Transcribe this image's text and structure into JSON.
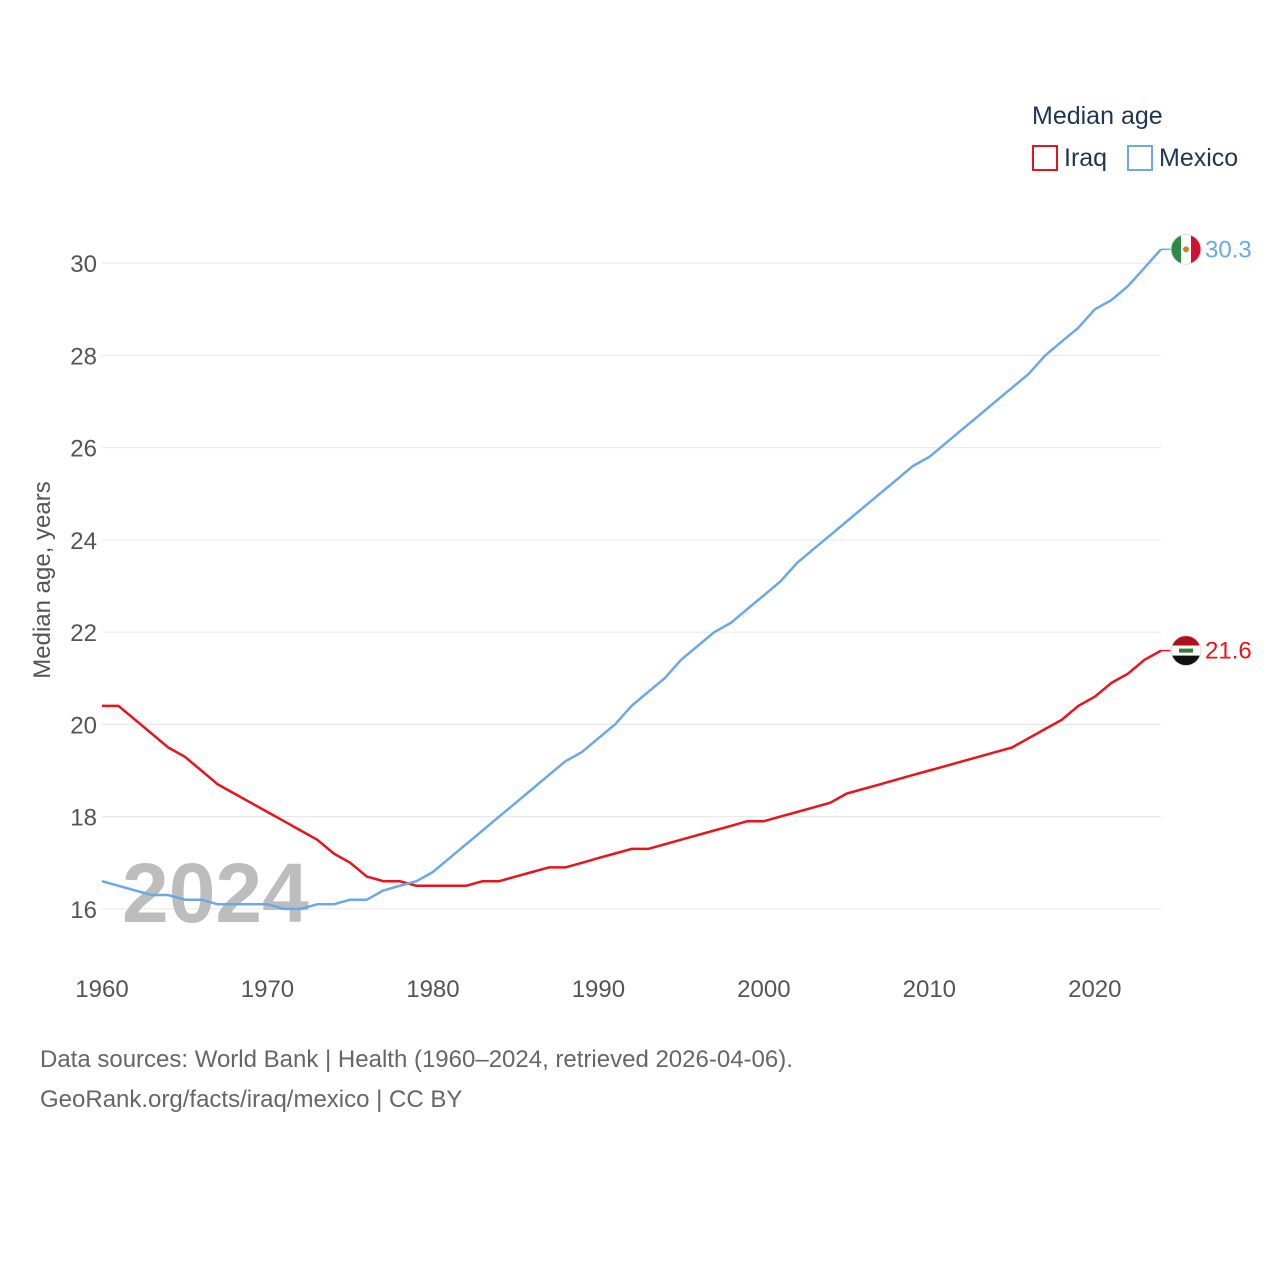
{
  "chart_data": {
    "type": "line",
    "legend_title": "Median age",
    "ylabel": "Median age, years",
    "xlabel": "",
    "xlim": [
      1960,
      2024
    ],
    "ylim": [
      15,
      31.5
    ],
    "x_ticks": [
      1960,
      1970,
      1980,
      1990,
      2000,
      2010,
      2020
    ],
    "y_ticks": [
      16,
      18,
      20,
      22,
      24,
      26,
      28,
      30
    ],
    "watermark_year": "2024",
    "legend_position": "top-right",
    "x": [
      1960,
      1961,
      1962,
      1963,
      1964,
      1965,
      1966,
      1967,
      1968,
      1969,
      1970,
      1971,
      1972,
      1973,
      1974,
      1975,
      1976,
      1977,
      1978,
      1979,
      1980,
      1981,
      1982,
      1983,
      1984,
      1985,
      1986,
      1987,
      1988,
      1989,
      1990,
      1991,
      1992,
      1993,
      1994,
      1995,
      1996,
      1997,
      1998,
      1999,
      2000,
      2001,
      2002,
      2003,
      2004,
      2005,
      2006,
      2007,
      2008,
      2009,
      2010,
      2011,
      2012,
      2013,
      2014,
      2015,
      2016,
      2017,
      2018,
      2019,
      2020,
      2021,
      2022,
      2023,
      2024
    ],
    "series": [
      {
        "name": "Iraq",
        "color": "#e8141c",
        "end_label": "21.6",
        "values": [
          20.4,
          20.4,
          20.1,
          19.8,
          19.5,
          19.3,
          19.0,
          18.7,
          18.5,
          18.3,
          18.1,
          17.9,
          17.7,
          17.5,
          17.2,
          17.0,
          16.7,
          16.6,
          16.6,
          16.5,
          16.5,
          16.5,
          16.5,
          16.6,
          16.6,
          16.7,
          16.8,
          16.9,
          16.9,
          17.0,
          17.1,
          17.2,
          17.3,
          17.3,
          17.4,
          17.5,
          17.6,
          17.7,
          17.8,
          17.9,
          17.9,
          18.0,
          18.1,
          18.2,
          18.3,
          18.5,
          18.6,
          18.7,
          18.8,
          18.9,
          19.0,
          19.1,
          19.2,
          19.3,
          19.4,
          19.5,
          19.7,
          19.9,
          20.1,
          20.4,
          20.6,
          20.9,
          21.1,
          21.4,
          21.6
        ]
      },
      {
        "name": "Mexico",
        "color": "#6aa8e8",
        "end_label": "30.3",
        "values": [
          16.6,
          16.5,
          16.4,
          16.3,
          16.3,
          16.2,
          16.2,
          16.1,
          16.1,
          16.1,
          16.1,
          16.0,
          16.0,
          16.1,
          16.1,
          16.2,
          16.2,
          16.4,
          16.5,
          16.6,
          16.8,
          17.1,
          17.4,
          17.7,
          18.0,
          18.3,
          18.6,
          18.9,
          19.2,
          19.4,
          19.7,
          20.0,
          20.4,
          20.7,
          21.0,
          21.4,
          21.7,
          22.0,
          22.2,
          22.5,
          22.8,
          23.1,
          23.5,
          23.8,
          24.1,
          24.4,
          24.7,
          25.0,
          25.3,
          25.6,
          25.8,
          26.1,
          26.4,
          26.7,
          27.0,
          27.3,
          27.6,
          28.0,
          28.3,
          28.6,
          29.0,
          29.2,
          29.5,
          29.9,
          30.3
        ]
      }
    ]
  },
  "footer": {
    "line1": "Data sources: World Bank | Health (1960–2024, retrieved 2026-04-06).",
    "line2": "GeoRank.org/facts/iraq/mexico | CC BY"
  }
}
